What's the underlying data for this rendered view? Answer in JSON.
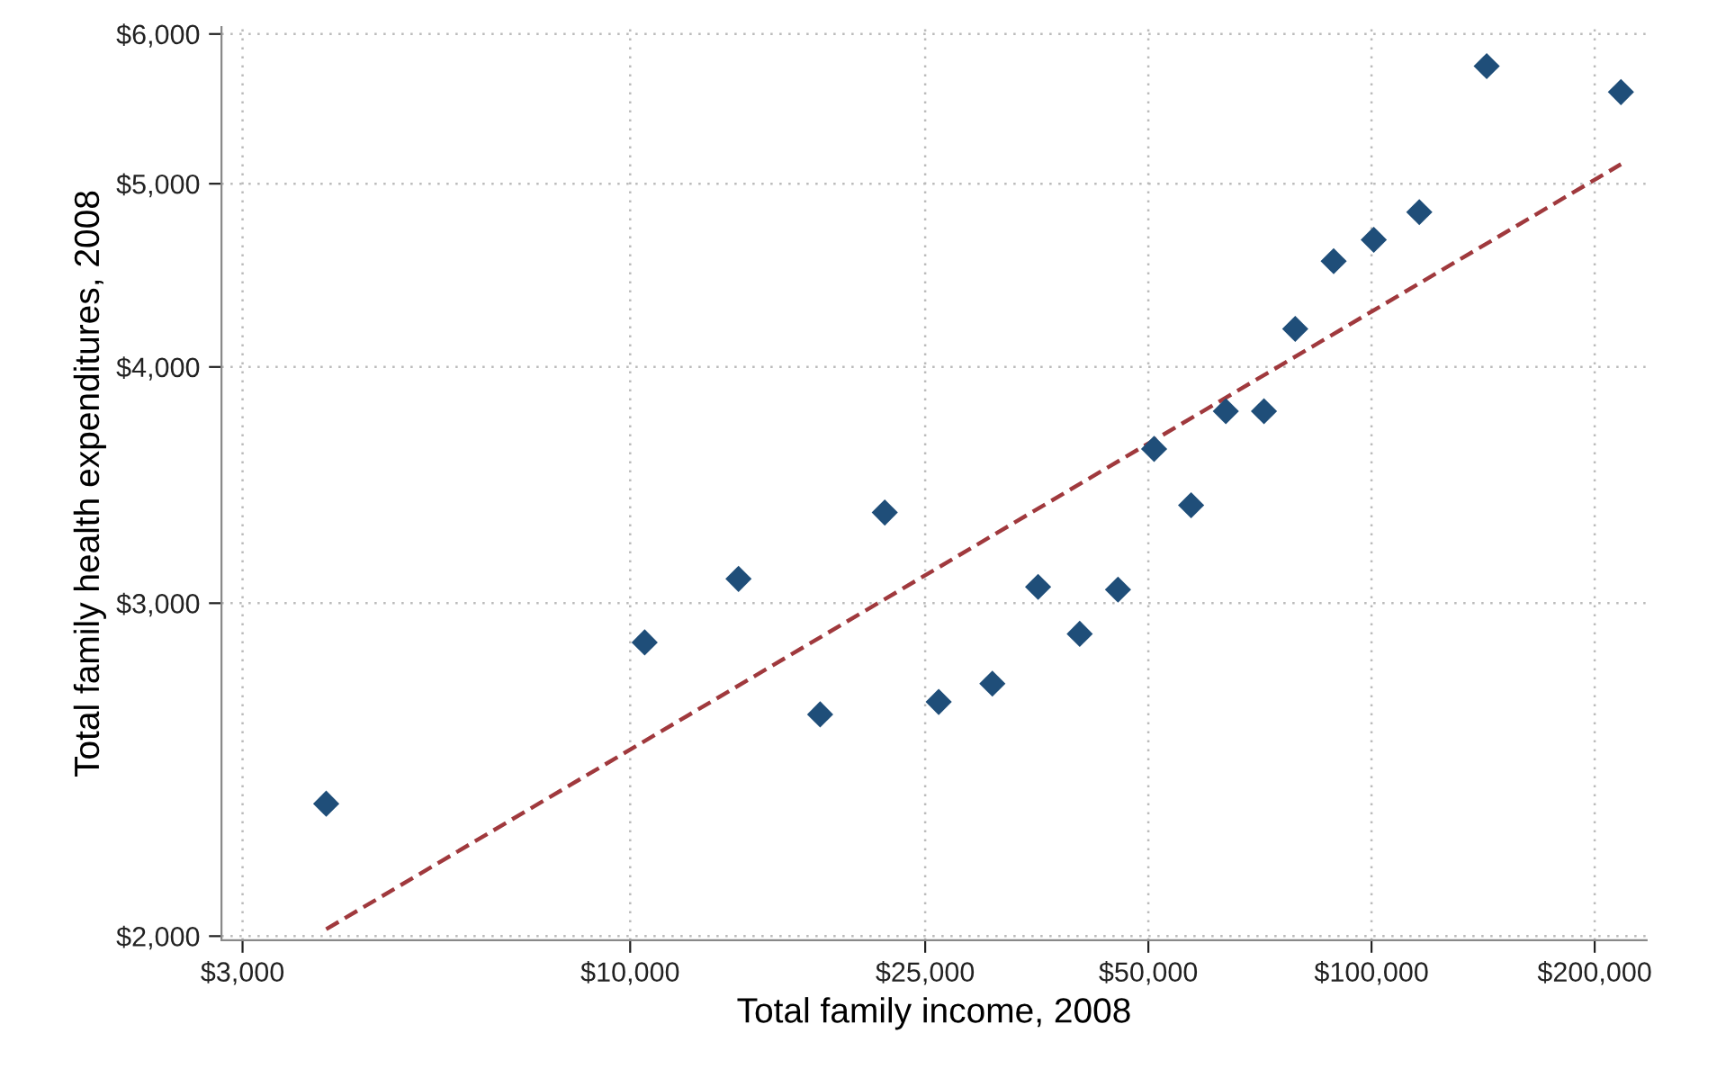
{
  "chart_data": {
    "type": "scatter",
    "xlabel": "Total family income, 2008",
    "ylabel": "Total family health expenditures, 2008",
    "log": "xy",
    "grid": true,
    "marker": "diamond",
    "xlim": [
      2810,
      235000
    ],
    "ylim": [
      1990,
      6050
    ],
    "xticks": [
      {
        "value": 3000,
        "label": "$3,000"
      },
      {
        "value": 10000,
        "label": "$10,000"
      },
      {
        "value": 25000,
        "label": "$25,000"
      },
      {
        "value": 50000,
        "label": "$50,000"
      },
      {
        "value": 100000,
        "label": "$100,000"
      },
      {
        "value": 200000,
        "label": "$200,000"
      }
    ],
    "yticks": [
      {
        "value": 2000,
        "label": "$2,000"
      },
      {
        "value": 3000,
        "label": "$3,000"
      },
      {
        "value": 4000,
        "label": "$4,000"
      },
      {
        "value": 5000,
        "label": "$5,000"
      },
      {
        "value": 6000,
        "label": "$6,000"
      }
    ],
    "series": [
      {
        "color": "#1f4e79",
        "x": [
          3890,
          10460,
          14000,
          18040,
          22050,
          26070,
          30800,
          35500,
          40400,
          45500,
          50900,
          57100,
          63600,
          71600,
          78900,
          88900,
          100700,
          116000,
          143000,
          217000
        ],
        "values": [
          2350,
          2860,
          3090,
          2620,
          3350,
          2660,
          2720,
          3060,
          2890,
          3050,
          3620,
          3380,
          3790,
          3790,
          4190,
          4550,
          4670,
          4830,
          5770,
          5590
        ]
      },
      {
        "type": "line",
        "color": "#a0393d",
        "line_style": "dashed",
        "marker": "none",
        "x": [
          3890,
          217000
        ],
        "values": [
          2017,
          5120
        ]
      }
    ]
  }
}
